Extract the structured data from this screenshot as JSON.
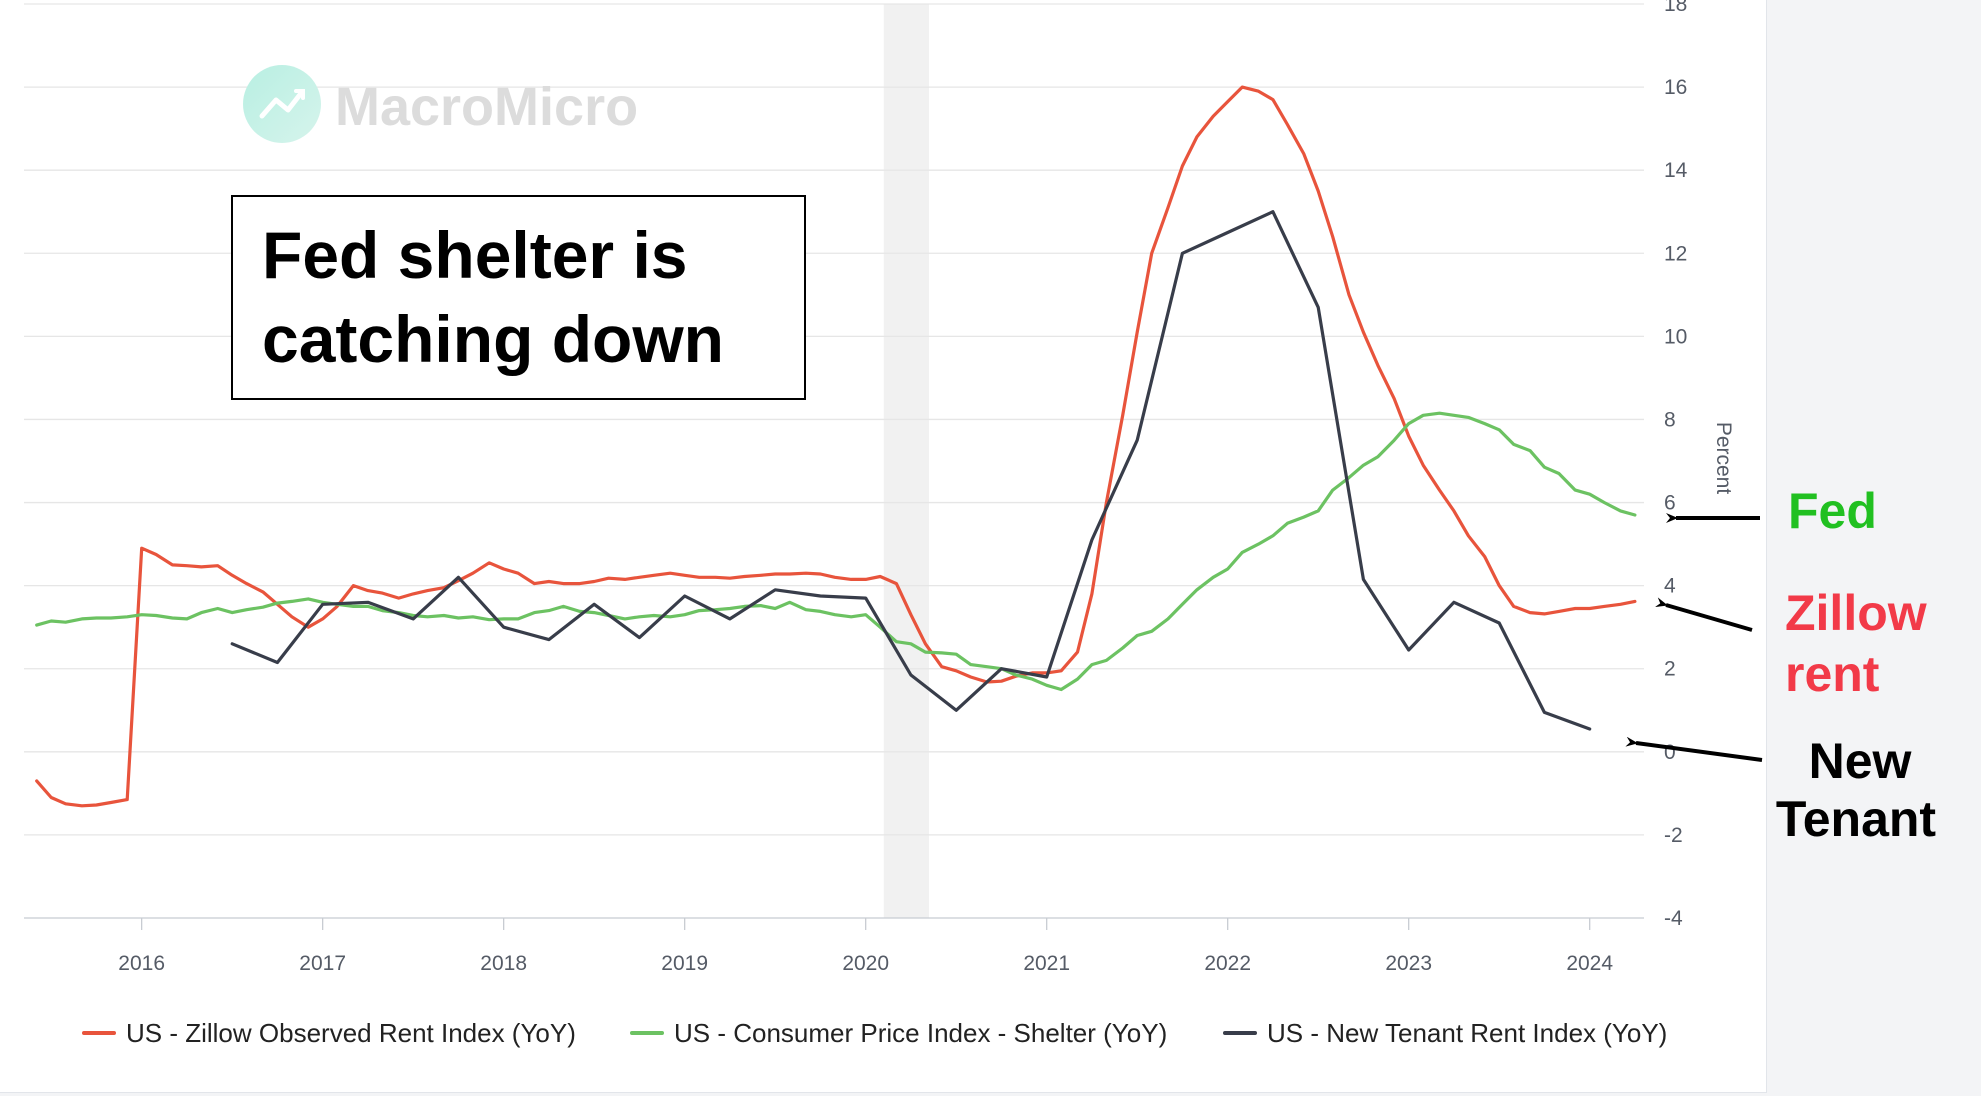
{
  "chart_data": {
    "type": "line",
    "ylabel": "Percent",
    "ylim": [
      -4,
      18
    ],
    "y_ticks": [
      "-4",
      "-2",
      "0",
      "2",
      "4",
      "6",
      "8",
      "10",
      "12",
      "14",
      "16",
      "18"
    ],
    "x_ticks": [
      "2016",
      "2017",
      "2018",
      "2019",
      "2020",
      "2021",
      "2022",
      "2023",
      "2024"
    ],
    "recession_shading": {
      "start": 2020.1,
      "end": 2020.35
    },
    "grid": true,
    "legend_position": "bottom",
    "series": [
      {
        "name": "US - Zillow Observed Rent Index (YoY)",
        "color": "#e8543c",
        "x": [
          2015.42,
          2015.5,
          2015.58,
          2015.67,
          2015.75,
          2015.83,
          2015.92,
          2016.0,
          2016.08,
          2016.17,
          2016.25,
          2016.33,
          2016.42,
          2016.5,
          2016.58,
          2016.67,
          2016.75,
          2016.83,
          2016.92,
          2017.0,
          2017.08,
          2017.17,
          2017.25,
          2017.33,
          2017.42,
          2017.5,
          2017.58,
          2017.67,
          2017.75,
          2017.83,
          2017.92,
          2018.0,
          2018.08,
          2018.17,
          2018.25,
          2018.33,
          2018.42,
          2018.5,
          2018.58,
          2018.67,
          2018.75,
          2018.83,
          2018.92,
          2019.0,
          2019.08,
          2019.17,
          2019.25,
          2019.33,
          2019.42,
          2019.5,
          2019.58,
          2019.67,
          2019.75,
          2019.83,
          2019.92,
          2020.0,
          2020.08,
          2020.17,
          2020.25,
          2020.33,
          2020.42,
          2020.5,
          2020.58,
          2020.67,
          2020.75,
          2020.83,
          2020.92,
          2021.0,
          2021.08,
          2021.17,
          2021.25,
          2021.33,
          2021.42,
          2021.5,
          2021.58,
          2021.67,
          2021.75,
          2021.83,
          2021.92,
          2022.0,
          2022.08,
          2022.17,
          2022.25,
          2022.33,
          2022.42,
          2022.5,
          2022.58,
          2022.67,
          2022.75,
          2022.83,
          2022.92,
          2023.0,
          2023.08,
          2023.17,
          2023.25,
          2023.33,
          2023.42,
          2023.5,
          2023.58,
          2023.67,
          2023.75,
          2023.83,
          2023.92,
          2024.0,
          2024.08,
          2024.17,
          2024.25
        ],
        "values": [
          -0.7,
          -1.1,
          -1.25,
          -1.3,
          -1.28,
          -1.22,
          -1.15,
          4.9,
          4.75,
          4.5,
          4.48,
          4.45,
          4.48,
          4.25,
          4.05,
          3.85,
          3.55,
          3.25,
          3.0,
          3.2,
          3.5,
          4.0,
          3.88,
          3.82,
          3.7,
          3.8,
          3.88,
          3.95,
          4.12,
          4.3,
          4.55,
          4.4,
          4.3,
          4.05,
          4.1,
          4.05,
          4.05,
          4.1,
          4.18,
          4.15,
          4.2,
          4.25,
          4.3,
          4.25,
          4.2,
          4.2,
          4.18,
          4.22,
          4.25,
          4.28,
          4.28,
          4.3,
          4.28,
          4.2,
          4.15,
          4.15,
          4.22,
          4.05,
          3.3,
          2.6,
          2.05,
          1.95,
          1.8,
          1.68,
          1.7,
          1.82,
          1.9,
          1.9,
          1.95,
          2.4,
          3.8,
          6.0,
          8.1,
          10.1,
          12.0,
          13.1,
          14.1,
          14.8,
          15.3,
          15.65,
          16.0,
          15.9,
          15.7,
          15.1,
          14.4,
          13.5,
          12.4,
          11.0,
          10.1,
          9.3,
          8.5,
          7.6,
          6.9,
          6.3,
          5.8,
          5.2,
          4.7,
          4.0,
          3.5,
          3.35,
          3.32,
          3.38,
          3.45,
          3.45,
          3.5,
          3.55,
          3.62
        ]
      },
      {
        "name": "US - Consumer Price Index - Shelter (YoY)",
        "color": "#6cc262",
        "x": [
          2015.42,
          2015.5,
          2015.58,
          2015.67,
          2015.75,
          2015.83,
          2015.92,
          2016.0,
          2016.08,
          2016.17,
          2016.25,
          2016.33,
          2016.42,
          2016.5,
          2016.58,
          2016.67,
          2016.75,
          2016.83,
          2016.92,
          2017.0,
          2017.08,
          2017.17,
          2017.25,
          2017.33,
          2017.42,
          2017.5,
          2017.58,
          2017.67,
          2017.75,
          2017.83,
          2017.92,
          2018.0,
          2018.08,
          2018.17,
          2018.25,
          2018.33,
          2018.42,
          2018.5,
          2018.58,
          2018.67,
          2018.75,
          2018.83,
          2018.92,
          2019.0,
          2019.08,
          2019.17,
          2019.25,
          2019.33,
          2019.42,
          2019.5,
          2019.58,
          2019.67,
          2019.75,
          2019.83,
          2019.92,
          2020.0,
          2020.08,
          2020.17,
          2020.25,
          2020.33,
          2020.42,
          2020.5,
          2020.58,
          2020.67,
          2020.75,
          2020.83,
          2020.92,
          2021.0,
          2021.08,
          2021.17,
          2021.25,
          2021.33,
          2021.42,
          2021.5,
          2021.58,
          2021.67,
          2021.75,
          2021.83,
          2021.92,
          2022.0,
          2022.08,
          2022.17,
          2022.25,
          2022.33,
          2022.42,
          2022.5,
          2022.58,
          2022.67,
          2022.75,
          2022.83,
          2022.92,
          2023.0,
          2023.08,
          2023.17,
          2023.25,
          2023.33,
          2023.42,
          2023.5,
          2023.58,
          2023.67,
          2023.75,
          2023.83,
          2023.92,
          2024.0,
          2024.08,
          2024.17,
          2024.25
        ],
        "values": [
          3.05,
          3.15,
          3.12,
          3.2,
          3.22,
          3.22,
          3.25,
          3.3,
          3.28,
          3.22,
          3.2,
          3.35,
          3.45,
          3.35,
          3.42,
          3.48,
          3.58,
          3.62,
          3.68,
          3.6,
          3.55,
          3.5,
          3.5,
          3.4,
          3.35,
          3.28,
          3.25,
          3.28,
          3.22,
          3.25,
          3.18,
          3.2,
          3.2,
          3.35,
          3.4,
          3.5,
          3.38,
          3.35,
          3.28,
          3.2,
          3.25,
          3.28,
          3.25,
          3.3,
          3.4,
          3.42,
          3.45,
          3.5,
          3.52,
          3.45,
          3.6,
          3.42,
          3.38,
          3.3,
          3.25,
          3.3,
          3.0,
          2.65,
          2.6,
          2.4,
          2.38,
          2.35,
          2.1,
          2.05,
          2.0,
          1.85,
          1.75,
          1.6,
          1.5,
          1.75,
          2.1,
          2.2,
          2.5,
          2.8,
          2.9,
          3.2,
          3.55,
          3.9,
          4.2,
          4.4,
          4.8,
          5.0,
          5.2,
          5.5,
          5.65,
          5.8,
          6.3,
          6.6,
          6.9,
          7.1,
          7.5,
          7.9,
          8.1,
          8.15,
          8.1,
          8.05,
          7.9,
          7.75,
          7.4,
          7.25,
          6.85,
          6.7,
          6.3,
          6.2,
          6.0,
          5.8,
          5.7
        ]
      },
      {
        "name": "US - New Tenant Rent Index (YoY)",
        "color": "#383d4a",
        "x": [
          2016.5,
          2016.75,
          2017.0,
          2017.25,
          2017.5,
          2017.75,
          2018.0,
          2018.25,
          2018.5,
          2018.75,
          2019.0,
          2019.25,
          2019.5,
          2019.75,
          2020.0,
          2020.25,
          2020.5,
          2020.75,
          2021.0,
          2021.25,
          2021.5,
          2021.75,
          2022.0,
          2022.25,
          2022.5,
          2022.75,
          2023.0,
          2023.25,
          2023.5,
          2023.75,
          2024.0
        ],
        "values": [
          2.6,
          2.15,
          3.55,
          3.6,
          3.2,
          4.2,
          3.0,
          2.7,
          3.55,
          2.75,
          3.75,
          3.2,
          3.9,
          3.75,
          3.7,
          1.85,
          1.0,
          2.0,
          1.8,
          5.1,
          7.5,
          12.0,
          12.5,
          13.0,
          10.7,
          4.15,
          2.45,
          3.6,
          3.1,
          0.95,
          0.55
        ]
      }
    ]
  },
  "watermark": {
    "text": "MacroMicro"
  },
  "callout": {
    "line1": "Fed shelter is",
    "line2": "catching down"
  },
  "labels": {
    "fed": {
      "text": "Fed",
      "color": "#21c021"
    },
    "zillow": {
      "line1": "Zillow",
      "line2": "rent",
      "color": "#f23a48"
    },
    "tenant": {
      "line1": "New",
      "line2": "Tenant",
      "color": "#000000"
    }
  }
}
